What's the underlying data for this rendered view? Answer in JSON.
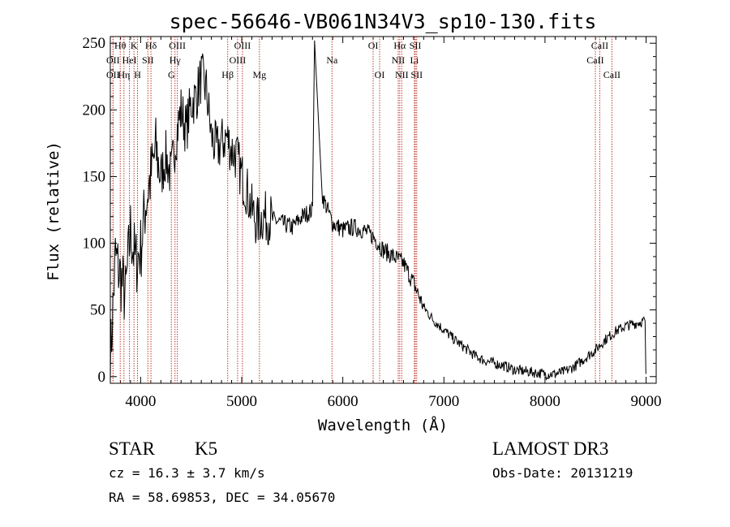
{
  "chart_data": {
    "type": "line",
    "title": "spec-56646-VB061N34V3_sp10-130.fits",
    "xlabel": "Wavelength (Å)",
    "ylabel": "Flux (relative)",
    "xlim": [
      3700,
      9100
    ],
    "ylim": [
      -5,
      255
    ],
    "xticks": [
      4000,
      5000,
      6000,
      7000,
      8000,
      9000
    ],
    "yticks": [
      0,
      50,
      100,
      150,
      200,
      250
    ],
    "series": [
      {
        "name": "flux",
        "x": [
          3700,
          3750,
          3800,
          3850,
          3900,
          3950,
          4000,
          4050,
          4100,
          4150,
          4200,
          4250,
          4300,
          4350,
          4400,
          4450,
          4500,
          4550,
          4600,
          4650,
          4700,
          4750,
          4800,
          4850,
          4900,
          4950,
          5000,
          5050,
          5100,
          5150,
          5200,
          5300,
          5400,
          5500,
          5600,
          5700,
          5720,
          5800,
          5900,
          6000,
          6100,
          6200,
          6300,
          6400,
          6500,
          6600,
          6700,
          6800,
          6900,
          7000,
          7100,
          7200,
          7300,
          7400,
          7500,
          7600,
          7700,
          7800,
          7900,
          8000,
          8100,
          8200,
          8300,
          8400,
          8500,
          8600,
          8700,
          8800,
          8900,
          8990
        ],
        "y": [
          10,
          90,
          75,
          60,
          110,
          85,
          95,
          130,
          150,
          170,
          150,
          165,
          150,
          180,
          200,
          185,
          205,
          210,
          225,
          215,
          180,
          170,
          175,
          180,
          170,
          165,
          150,
          140,
          125,
          115,
          120,
          118,
          115,
          112,
          120,
          125,
          260,
          135,
          115,
          110,
          112,
          110,
          105,
          95,
          90,
          85,
          70,
          52,
          42,
          35,
          28,
          22,
          16,
          12,
          10,
          8,
          5,
          4,
          3,
          2,
          2,
          4,
          8,
          14,
          20,
          28,
          34,
          38,
          40,
          42
        ]
      }
    ],
    "spectral_lines": [
      {
        "name": "Hθ",
        "wavelength": 3798,
        "row": 0
      },
      {
        "name": "K",
        "wavelength": 3934,
        "row": 0
      },
      {
        "name": "Hδ",
        "wavelength": 4102,
        "row": 0
      },
      {
        "name": "OII",
        "wavelength": 3727,
        "row": 1
      },
      {
        "name": "HeI",
        "wavelength": 3889,
        "row": 1
      },
      {
        "name": "SII",
        "wavelength": 4072,
        "row": 1
      },
      {
        "name": "OII",
        "wavelength": 3727,
        "row": 2
      },
      {
        "name": "Hη",
        "wavelength": 3835,
        "row": 2
      },
      {
        "name": "H",
        "wavelength": 3969,
        "row": 2
      },
      {
        "name": "OIII",
        "wavelength": 4363,
        "row": 0
      },
      {
        "name": "Hγ",
        "wavelength": 4340,
        "row": 1
      },
      {
        "name": "G",
        "wavelength": 4304,
        "row": 2
      },
      {
        "name": "OIII",
        "wavelength": 5007,
        "row": 0
      },
      {
        "name": "OIII",
        "wavelength": 4959,
        "row": 1
      },
      {
        "name": "Hβ",
        "wavelength": 4861,
        "row": 2
      },
      {
        "name": "Mg",
        "wavelength": 5175,
        "row": 2
      },
      {
        "name": "Na",
        "wavelength": 5893,
        "row": 1
      },
      {
        "name": "OI",
        "wavelength": 6300,
        "row": 0
      },
      {
        "name": "OI",
        "wavelength": 6364,
        "row": 2
      },
      {
        "name": "Hα",
        "wavelength": 6563,
        "row": 0
      },
      {
        "name": "SII",
        "wavelength": 6717,
        "row": 0
      },
      {
        "name": "NII",
        "wavelength": 6548,
        "row": 1
      },
      {
        "name": "Li",
        "wavelength": 6708,
        "row": 1
      },
      {
        "name": "NII",
        "wavelength": 6583,
        "row": 2
      },
      {
        "name": "SII",
        "wavelength": 6731,
        "row": 2
      },
      {
        "name": "CaII",
        "wavelength": 8542,
        "row": 0
      },
      {
        "name": "CaII",
        "wavelength": 8498,
        "row": 1
      },
      {
        "name": "CaII",
        "wavelength": 8662,
        "row": 2
      }
    ]
  },
  "info": {
    "class": "STAR",
    "subclass": "K5",
    "survey": "LAMOST DR3",
    "redshift": "cz = 16.3 ± 3.7 km/s",
    "obs_date": "Obs-Date: 20131219",
    "coords": "RA =  58.69853, DEC =  34.05670"
  }
}
